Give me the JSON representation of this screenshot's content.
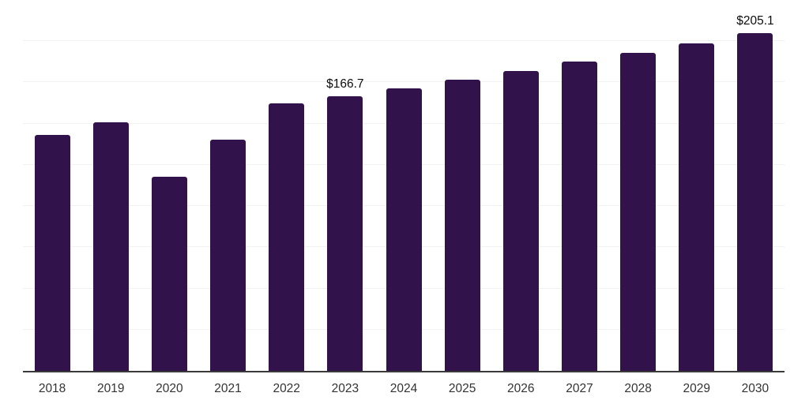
{
  "chart_data": {
    "type": "bar",
    "title": "",
    "xlabel": "",
    "ylabel": "",
    "categories": [
      "2018",
      "2019",
      "2020",
      "2021",
      "2022",
      "2023",
      "2024",
      "2025",
      "2026",
      "2027",
      "2028",
      "2029",
      "2030"
    ],
    "values": [
      143.0,
      150.6,
      117.9,
      140.4,
      162.4,
      166.7,
      171.4,
      176.6,
      181.9,
      187.5,
      192.9,
      198.7,
      205.1
    ],
    "data_labels": [
      "",
      "",
      "",
      "",
      "",
      "$166.7",
      "",
      "",
      "",
      "",
      "",
      "",
      "$205.1"
    ],
    "ylim": [
      0,
      225
    ],
    "grid_step": 25,
    "grid_on": true,
    "legend": "none",
    "y_tick_labels_visible": false,
    "colors": {
      "bar": "#32124a",
      "gridline": "#f2f2f2",
      "axis_line": "#3a3a3a",
      "tick_label": "#333333",
      "data_label": "#0d0d0d",
      "background": "#ffffff"
    }
  }
}
